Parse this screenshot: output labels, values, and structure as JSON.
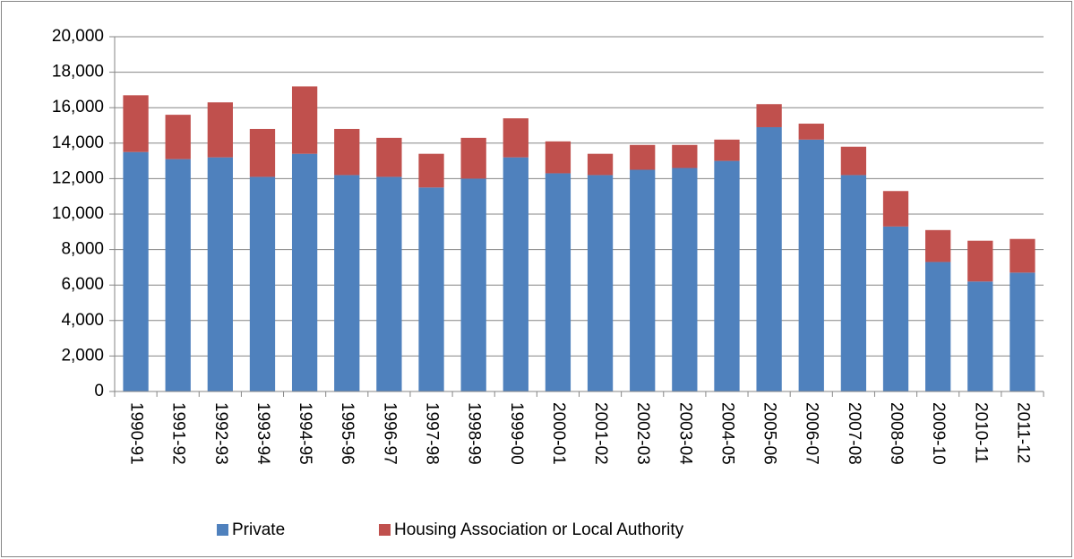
{
  "chart_data": {
    "type": "stacked_bar",
    "categories": [
      "1990-91",
      "1991-92",
      "1992-93",
      "1993-94",
      "1994-95",
      "1995-96",
      "1996-97",
      "1997-98",
      "1998-99",
      "1999-00",
      "2000-01",
      "2001-02",
      "2002-03",
      "2003-04",
      "2004-05",
      "2005-06",
      "2006-07",
      "2007-08",
      "2008-09",
      "2009-10",
      "2010-11",
      "2011-12"
    ],
    "series": [
      {
        "name": "Private",
        "color": "#4f81bd",
        "values": [
          13500,
          13100,
          13200,
          12100,
          13400,
          12200,
          12100,
          11500,
          12000,
          13200,
          12300,
          12200,
          12500,
          12600,
          13000,
          14900,
          14200,
          12200,
          9300,
          7300,
          6200,
          6700
        ]
      },
      {
        "name": "Housing Association or Local Authority",
        "color": "#c0504d",
        "values": [
          3200,
          2500,
          3100,
          2700,
          3800,
          2600,
          2200,
          1900,
          2300,
          2200,
          1800,
          1200,
          1400,
          1300,
          1200,
          1300,
          900,
          1600,
          2000,
          1800,
          2300,
          1900
        ]
      }
    ],
    "ylim": [
      0,
      20000
    ],
    "yticks": [
      0,
      {
        "value": 2000,
        "label": "2,000"
      },
      {
        "value": 4000,
        "label": "4,000"
      },
      {
        "value": 6000,
        "label": "6,000"
      },
      {
        "value": 8000,
        "label": "8,000"
      },
      {
        "value": 10000,
        "label": "10,000"
      },
      {
        "value": 12000,
        "label": "12,000"
      },
      {
        "value": 14000,
        "label": "14,000"
      },
      {
        "value": 16000,
        "label": "16,000"
      },
      {
        "value": 18000,
        "label": "18,000"
      },
      {
        "value": 20000,
        "label": "20,000"
      }
    ],
    "grid": true,
    "legend": "bottom"
  }
}
